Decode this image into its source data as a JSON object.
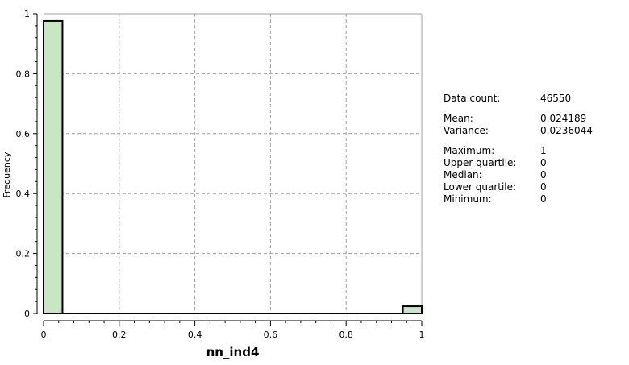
{
  "chart_data": {
    "type": "bar",
    "subtype": "histogram",
    "xlabel": "nn_ind4",
    "ylabel": "Frequency",
    "xlim": [
      0,
      1
    ],
    "ylim": [
      0,
      1
    ],
    "xticks": [
      "0",
      "0.2",
      "0.4",
      "0.6",
      "0.8",
      "1"
    ],
    "yticks": [
      "0",
      "0.2",
      "0.4",
      "0.6",
      "0.8",
      "1"
    ],
    "bin_width": 0.05,
    "bins": [
      {
        "x0": 0.0,
        "x1": 0.05,
        "value": 0.976
      },
      {
        "x0": 0.95,
        "x1": 1.0,
        "value": 0.024
      }
    ],
    "grid": true,
    "bar_color": "#c8e6c3",
    "bar_edge_color": "#000000"
  },
  "stats": [
    {
      "label": "Data count:",
      "value": "46550"
    },
    {
      "label": "Mean:",
      "value": "0.024189",
      "gap": true
    },
    {
      "label": "Variance:",
      "value": "0.0236044"
    },
    {
      "label": "Maximum:",
      "value": "1",
      "gap": true
    },
    {
      "label": "Upper quartile:",
      "value": "0"
    },
    {
      "label": "Median:",
      "value": "0"
    },
    {
      "label": "Lower quartile:",
      "value": "0"
    },
    {
      "label": "Minimum:",
      "value": "0"
    }
  ]
}
